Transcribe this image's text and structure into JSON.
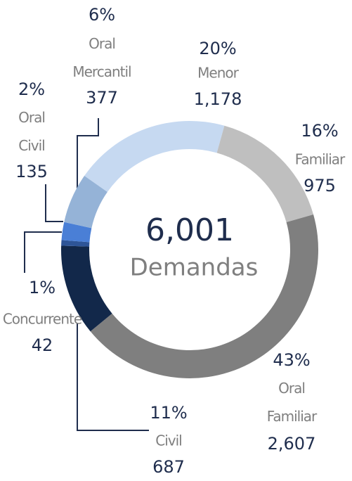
{
  "chart_data": {
    "type": "donut",
    "categories": [
      "Menor",
      "Familiar",
      "Oral Familiar",
      "Civil",
      "Concurrente",
      "Oral Civil",
      "Oral Mercantil"
    ],
    "values": [
      1178,
      975,
      2607,
      687,
      42,
      135,
      377
    ],
    "value_labels": [
      "1,178",
      "975",
      "2,607",
      "687",
      "42",
      "135",
      "377"
    ],
    "percentages": [
      20,
      16,
      43,
      11,
      1,
      2,
      6
    ],
    "percentage_labels": [
      "20%",
      "16%",
      "43%",
      "11%",
      "1%",
      "2%",
      "6%"
    ],
    "colors": [
      "#c6d9f1",
      "#bfbfbf",
      "#7f7f7f",
      "#12284a",
      "#2e5597",
      "#4a7fd6",
      "#95b3d7"
    ],
    "center": {
      "value": "6,001",
      "label": "Demandas"
    }
  }
}
